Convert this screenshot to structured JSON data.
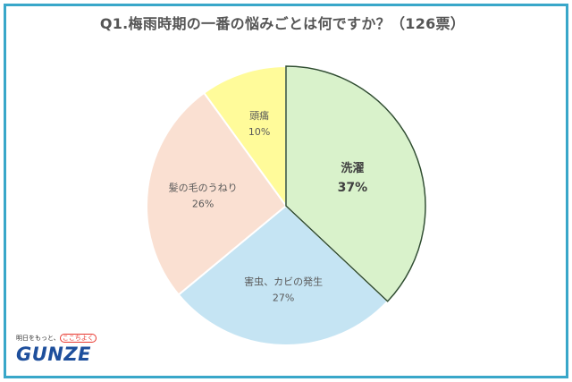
{
  "chart_data": {
    "type": "pie",
    "title": "Q1.梅雨時期の一番の悩みごとは何ですか？（126票）",
    "slices": [
      {
        "label": "洗濯",
        "value": 37,
        "value_label": "37%",
        "color": "#d9f2cb",
        "emphasis": true
      },
      {
        "label": "害虫、カビの発生",
        "value": 27,
        "value_label": "27%",
        "color": "#c5e4f3",
        "emphasis": false
      },
      {
        "label": "髪の毛のうねり",
        "value": 26,
        "value_label": "26%",
        "color": "#fae0d2",
        "emphasis": false
      },
      {
        "label": "頭痛",
        "value": 10,
        "value_label": "10%",
        "color": "#fffb9a",
        "emphasis": false
      }
    ],
    "start": "12 o'clock",
    "direction": "clockwise",
    "highlight_outline_color": "#2f4f2f"
  },
  "logo": {
    "tagline_pre": "明日をもっと、",
    "tagline_highlight": "ここちよく",
    "tagline_post": "",
    "brand": "GUNZE"
  },
  "colors": {
    "frame": "#39a7c9",
    "title_text": "#555555",
    "brand": "#1e4f9c",
    "tagline_accent": "#e8382f"
  }
}
